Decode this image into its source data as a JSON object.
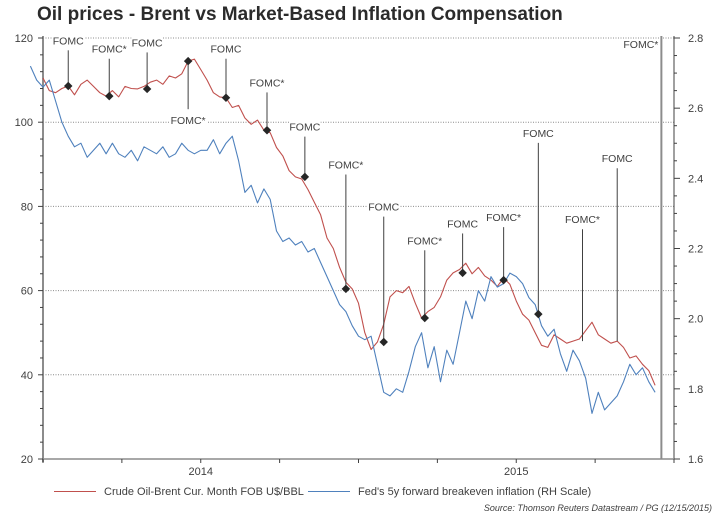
{
  "chart_data": {
    "type": "line",
    "title": "Oil prices - Brent vs Market-Based Inflation Compensation",
    "xlabel": "",
    "ylabel_left": "",
    "ylabel_right": "",
    "x_range": [
      2014.0,
      2016.0
    ],
    "x_tick_labels": [
      {
        "label": "2014",
        "x": 2014.5
      },
      {
        "label": "2015",
        "x": 2015.5
      }
    ],
    "x_minor_ticks": [
      2014.0,
      2014.25,
      2014.5,
      2014.75,
      2015.0,
      2015.25,
      2015.5,
      2015.75,
      2016.0
    ],
    "ylim_left": [
      20,
      120
    ],
    "yticks_left": [
      20,
      40,
      60,
      80,
      100,
      120
    ],
    "ytick_labels_left": [
      "20",
      "40",
      "60",
      "80",
      "100",
      "120"
    ],
    "ylim_right": [
      1.6,
      2.8
    ],
    "yticks_right": [
      1.6,
      1.8,
      2.0,
      2.2,
      2.4,
      2.6,
      2.8
    ],
    "ytick_labels_right": [
      "1.6",
      "1.8",
      "2.0",
      "2.2",
      "2.4",
      "2.6",
      "2.8"
    ],
    "grid": "horizontal-dotted",
    "legend_position": "bottom",
    "series": [
      {
        "name": "Crude Oil-Brent Cur. Month FOB U$/BBL",
        "axis": "left",
        "color": "#c0504d",
        "x": [
          2014.0,
          2014.02,
          2014.04,
          2014.06,
          2014.08,
          2014.1,
          2014.12,
          2014.14,
          2014.16,
          2014.18,
          2014.2,
          2014.22,
          2014.24,
          2014.26,
          2014.28,
          2014.3,
          2014.32,
          2014.34,
          2014.36,
          2014.38,
          2014.4,
          2014.42,
          2014.44,
          2014.46,
          2014.48,
          2014.5,
          2014.52,
          2014.54,
          2014.56,
          2014.58,
          2014.6,
          2014.62,
          2014.64,
          2014.66,
          2014.68,
          2014.7,
          2014.72,
          2014.74,
          2014.76,
          2014.78,
          2014.8,
          2014.82,
          2014.84,
          2014.86,
          2014.88,
          2014.9,
          2014.92,
          2014.94,
          2014.96,
          2014.98,
          2015.0,
          2015.02,
          2015.04,
          2015.06,
          2015.08,
          2015.1,
          2015.12,
          2015.14,
          2015.16,
          2015.18,
          2015.2,
          2015.22,
          2015.24,
          2015.26,
          2015.28,
          2015.3,
          2015.32,
          2015.34,
          2015.36,
          2015.38,
          2015.4,
          2015.42,
          2015.44,
          2015.46,
          2015.48,
          2015.5,
          2015.52,
          2015.54,
          2015.56,
          2015.58,
          2015.6,
          2015.62,
          2015.64,
          2015.66,
          2015.68,
          2015.7,
          2015.72,
          2015.74,
          2015.76,
          2015.78,
          2015.8,
          2015.82,
          2015.84,
          2015.86,
          2015.88,
          2015.9,
          2015.92,
          2015.94
        ],
        "values": [
          110.5,
          107.5,
          107.0,
          108.0,
          108.6,
          106.5,
          109.0,
          110.0,
          108.5,
          107.0,
          106.2,
          107.5,
          106.0,
          108.5,
          108.0,
          107.9,
          108.5,
          109.5,
          110.0,
          109.0,
          111.0,
          110.5,
          111.5,
          114.5,
          115.0,
          112.5,
          110.0,
          107.0,
          106.0,
          105.8,
          103.5,
          104.0,
          101.0,
          99.5,
          100.5,
          98.1,
          97.5,
          94.0,
          92.0,
          88.5,
          87.0,
          86.5,
          84.0,
          81.0,
          78.0,
          72.5,
          70.0,
          65.5,
          62.0,
          60.4,
          57.0,
          50.0,
          46.0,
          47.8,
          52.0,
          58.5,
          60.0,
          59.5,
          61.0,
          57.0,
          53.5,
          55.0,
          56.0,
          58.5,
          62.5,
          64.2,
          65.0,
          66.5,
          64.0,
          65.5,
          63.5,
          62.5,
          61.0,
          63.0,
          61.5,
          57.5,
          54.4,
          53.0,
          50.0,
          47.0,
          46.5,
          49.5,
          48.5,
          47.5,
          48.0,
          48.5,
          50.5,
          52.5,
          49.5,
          48.5,
          47.5,
          48.0,
          46.5,
          44.0,
          44.5,
          42.5,
          41.0,
          37.5
        ]
      },
      {
        "name": "Fed's 5y forward breakeven inflation (RH Scale)",
        "axis": "right",
        "color": "#4f81bd",
        "x": [
          2013.96,
          2013.98,
          2014.0,
          2014.02,
          2014.04,
          2014.06,
          2014.08,
          2014.1,
          2014.12,
          2014.14,
          2014.16,
          2014.18,
          2014.2,
          2014.22,
          2014.24,
          2014.26,
          2014.28,
          2014.3,
          2014.32,
          2014.34,
          2014.36,
          2014.38,
          2014.4,
          2014.42,
          2014.44,
          2014.46,
          2014.48,
          2014.5,
          2014.52,
          2014.54,
          2014.56,
          2014.58,
          2014.6,
          2014.62,
          2014.64,
          2014.66,
          2014.68,
          2014.7,
          2014.72,
          2014.74,
          2014.76,
          2014.78,
          2014.8,
          2014.82,
          2014.84,
          2014.86,
          2014.88,
          2014.9,
          2014.92,
          2014.94,
          2014.96,
          2014.98,
          2015.0,
          2015.02,
          2015.04,
          2015.06,
          2015.08,
          2015.1,
          2015.12,
          2015.14,
          2015.16,
          2015.18,
          2015.2,
          2015.22,
          2015.24,
          2015.26,
          2015.28,
          2015.3,
          2015.32,
          2015.34,
          2015.36,
          2015.38,
          2015.4,
          2015.42,
          2015.44,
          2015.46,
          2015.48,
          2015.5,
          2015.52,
          2015.54,
          2015.56,
          2015.58,
          2015.6,
          2015.62,
          2015.64,
          2015.66,
          2015.68,
          2015.7,
          2015.72,
          2015.74,
          2015.76,
          2015.78,
          2015.8,
          2015.82,
          2015.84,
          2015.86,
          2015.88,
          2015.9,
          2015.92,
          2015.94
        ],
        "values": [
          2.72,
          2.68,
          2.66,
          2.68,
          2.62,
          2.56,
          2.52,
          2.49,
          2.5,
          2.46,
          2.48,
          2.5,
          2.47,
          2.5,
          2.47,
          2.46,
          2.48,
          2.45,
          2.49,
          2.48,
          2.47,
          2.49,
          2.46,
          2.47,
          2.5,
          2.48,
          2.47,
          2.48,
          2.48,
          2.51,
          2.47,
          2.5,
          2.52,
          2.45,
          2.36,
          2.38,
          2.33,
          2.37,
          2.34,
          2.25,
          2.22,
          2.23,
          2.21,
          2.22,
          2.19,
          2.2,
          2.16,
          2.12,
          2.08,
          2.04,
          2.02,
          1.98,
          1.95,
          1.94,
          1.95,
          1.87,
          1.79,
          1.78,
          1.8,
          1.79,
          1.85,
          1.92,
          1.96,
          1.86,
          1.92,
          1.82,
          1.91,
          1.87,
          1.96,
          2.05,
          2.0,
          2.08,
          2.05,
          2.12,
          2.09,
          2.1,
          2.13,
          2.12,
          2.1,
          2.06,
          2.04,
          1.98,
          1.95,
          1.97,
          1.9,
          1.85,
          1.91,
          1.88,
          1.83,
          1.73,
          1.79,
          1.74,
          1.76,
          1.78,
          1.82,
          1.87,
          1.84,
          1.86,
          1.82,
          1.79
        ]
      }
    ],
    "annotations": [
      {
        "label": "FOMC",
        "x": 2014.08,
        "brent": 108.6,
        "label_pos": "above",
        "marker": true
      },
      {
        "label": "FOMC*",
        "x": 2014.21,
        "brent": 106.2,
        "label_pos": "above",
        "marker": true
      },
      {
        "label": "FOMC",
        "x": 2014.33,
        "brent": 107.9,
        "label_pos": "above",
        "marker": true
      },
      {
        "label": "FOMC*",
        "x": 2014.46,
        "brent": 114.5,
        "label_pos": "below",
        "marker": true
      },
      {
        "label": "FOMC",
        "x": 2014.58,
        "brent": 105.8,
        "label_pos": "above",
        "marker": true
      },
      {
        "label": "FOMC*",
        "x": 2014.71,
        "brent": 98.1,
        "label_pos": "above",
        "marker": true
      },
      {
        "label": "FOMC",
        "x": 2014.83,
        "brent": 87.0,
        "label_pos": "above",
        "marker": true
      },
      {
        "label": "FOMC*",
        "x": 2014.96,
        "brent": 60.4,
        "label_pos": "above",
        "marker": true
      },
      {
        "label": "FOMC",
        "x": 2015.08,
        "brent": 47.8,
        "label_pos": "above",
        "marker": true
      },
      {
        "label": "FOMC*",
        "x": 2015.21,
        "brent": 53.5,
        "label_pos": "above",
        "marker": true
      },
      {
        "label": "FOMC",
        "x": 2015.33,
        "brent": 64.2,
        "label_pos": "above",
        "marker": true
      },
      {
        "label": "FOMC*",
        "x": 2015.46,
        "brent": 62.5,
        "label_pos": "above",
        "marker": true
      },
      {
        "label": "FOMC",
        "x": 2015.57,
        "brent": 54.4,
        "label_pos": "above",
        "marker": true
      },
      {
        "label": "FOMC*",
        "x": 2015.71,
        "brent": 48.0,
        "label_pos": "above",
        "marker": false
      },
      {
        "label": "FOMC",
        "x": 2015.82,
        "brent": 48.0,
        "label_pos": "above",
        "marker": false
      },
      {
        "label": "FOMC*",
        "x": 2015.96,
        "brent": 20.0,
        "label_pos": "top",
        "marker": false
      }
    ],
    "annotation_label_levels": [
      118.5,
      116.5,
      118.0,
      100.0,
      116.5,
      108.5,
      98.0,
      89.0,
      79.0,
      71.0,
      75.0,
      76.5,
      96.5,
      76.0,
      90.5,
      117.5
    ]
  },
  "legend": {
    "brent_label": "Crude Oil-Brent Cur. Month FOB U$/BBL",
    "inflation_label": "Fed's 5y forward breakeven inflation (RH Scale)"
  },
  "source": "Source: Thomson Reuters Datastream / PG (12/15/2015)"
}
